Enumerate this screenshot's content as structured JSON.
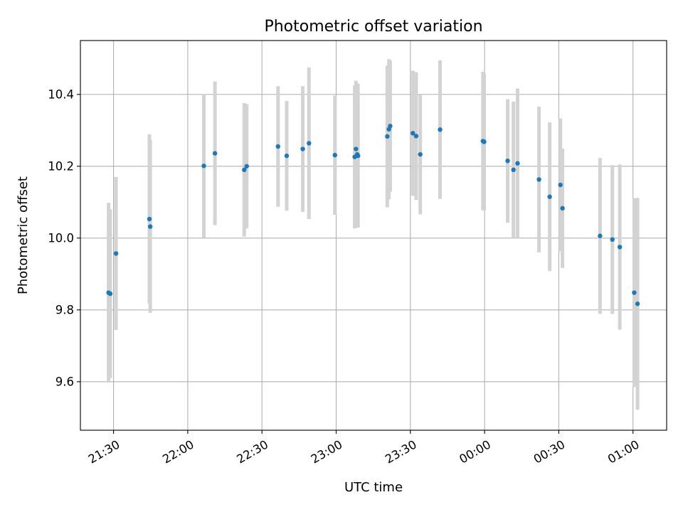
{
  "chart_data": {
    "type": "scatter",
    "title": "Photometric offset variation",
    "xlabel": "UTC time",
    "ylabel": "Photometric offset",
    "x_is_time": true,
    "x_date_origin": "2000-01-01",
    "xlim": [
      "21:16:36",
      "01:13:36"
    ],
    "ylim": [
      9.465,
      10.55
    ],
    "grid": true,
    "x_tick_values": [
      "21:30",
      "22:00",
      "22:30",
      "23:00",
      "23:30",
      "00:00",
      "00:30",
      "01:00"
    ],
    "x_tick_labels": [
      "21:30",
      "22:00",
      "22:30",
      "23:00",
      "23:30",
      "00:00",
      "00:30",
      "01:00"
    ],
    "y_tick_values": [
      9.6,
      9.8,
      10.0,
      10.2,
      10.4
    ],
    "y_tick_labels": [
      "9.6",
      "9.8",
      "10.0",
      "10.2",
      "10.4"
    ],
    "point_color": "#1f77b4",
    "errorbar_color": "#d3d3d3",
    "points": [
      {
        "x": "21:28:00",
        "y": 9.848,
        "yerr": 0.25
      },
      {
        "x": "21:28:40",
        "y": 9.845,
        "yerr": 0.235
      },
      {
        "x": "21:31:00",
        "y": 9.957,
        "yerr": 0.213
      },
      {
        "x": "21:44:30",
        "y": 10.053,
        "yerr": 0.236
      },
      {
        "x": "21:44:50",
        "y": 10.032,
        "yerr": 0.24
      },
      {
        "x": "22:06:30",
        "y": 10.201,
        "yerr": 0.2
      },
      {
        "x": "22:11:00",
        "y": 10.236,
        "yerr": 0.2
      },
      {
        "x": "22:22:50",
        "y": 10.19,
        "yerr": 0.186
      },
      {
        "x": "22:23:50",
        "y": 10.2,
        "yerr": 0.173
      },
      {
        "x": "22:36:30",
        "y": 10.255,
        "yerr": 0.168
      },
      {
        "x": "22:40:00",
        "y": 10.229,
        "yerr": 0.153
      },
      {
        "x": "22:46:30",
        "y": 10.248,
        "yerr": 0.175
      },
      {
        "x": "22:49:00",
        "y": 10.264,
        "yerr": 0.211
      },
      {
        "x": "22:59:30",
        "y": 10.231,
        "yerr": 0.166
      },
      {
        "x": "23:07:30",
        "y": 10.226,
        "yerr": 0.199
      },
      {
        "x": "23:08:00",
        "y": 10.248,
        "yerr": 0.19
      },
      {
        "x": "23:08:30",
        "y": 10.233,
        "yerr": 0.198
      },
      {
        "x": "23:08:50",
        "y": 10.229,
        "yerr": 0.2
      },
      {
        "x": "23:20:40",
        "y": 10.283,
        "yerr": 0.197
      },
      {
        "x": "23:21:20",
        "y": 10.303,
        "yerr": 0.195
      },
      {
        "x": "23:21:50",
        "y": 10.312,
        "yerr": 0.183
      },
      {
        "x": "23:31:00",
        "y": 10.292,
        "yerr": 0.174
      },
      {
        "x": "23:32:20",
        "y": 10.284,
        "yerr": 0.178
      },
      {
        "x": "23:34:00",
        "y": 10.233,
        "yerr": 0.167
      },
      {
        "x": "23:42:00",
        "y": 10.302,
        "yerr": 0.193
      },
      {
        "x": "23:59:20",
        "y": 10.27,
        "yerr": 0.193
      },
      {
        "x": "23:59:50",
        "y": 10.268,
        "yerr": 0.19
      },
      {
        "x": "00:09:20",
        "y": 10.215,
        "yerr": 0.172
      },
      {
        "x": "00:11:40",
        "y": 10.19,
        "yerr": 0.19
      },
      {
        "x": "00:13:20",
        "y": 10.208,
        "yerr": 0.208
      },
      {
        "x": "00:22:00",
        "y": 10.163,
        "yerr": 0.203
      },
      {
        "x": "00:26:20",
        "y": 10.115,
        "yerr": 0.207
      },
      {
        "x": "00:30:40",
        "y": 10.148,
        "yerr": 0.185
      },
      {
        "x": "00:31:30",
        "y": 10.083,
        "yerr": 0.166
      },
      {
        "x": "00:46:40",
        "y": 10.006,
        "yerr": 0.217
      },
      {
        "x": "00:51:40",
        "y": 9.996,
        "yerr": 0.207
      },
      {
        "x": "00:54:40",
        "y": 9.975,
        "yerr": 0.23
      },
      {
        "x": "01:00:30",
        "y": 9.848,
        "yerr": 0.263
      },
      {
        "x": "01:01:50",
        "y": 9.817,
        "yerr": 0.295
      }
    ]
  }
}
